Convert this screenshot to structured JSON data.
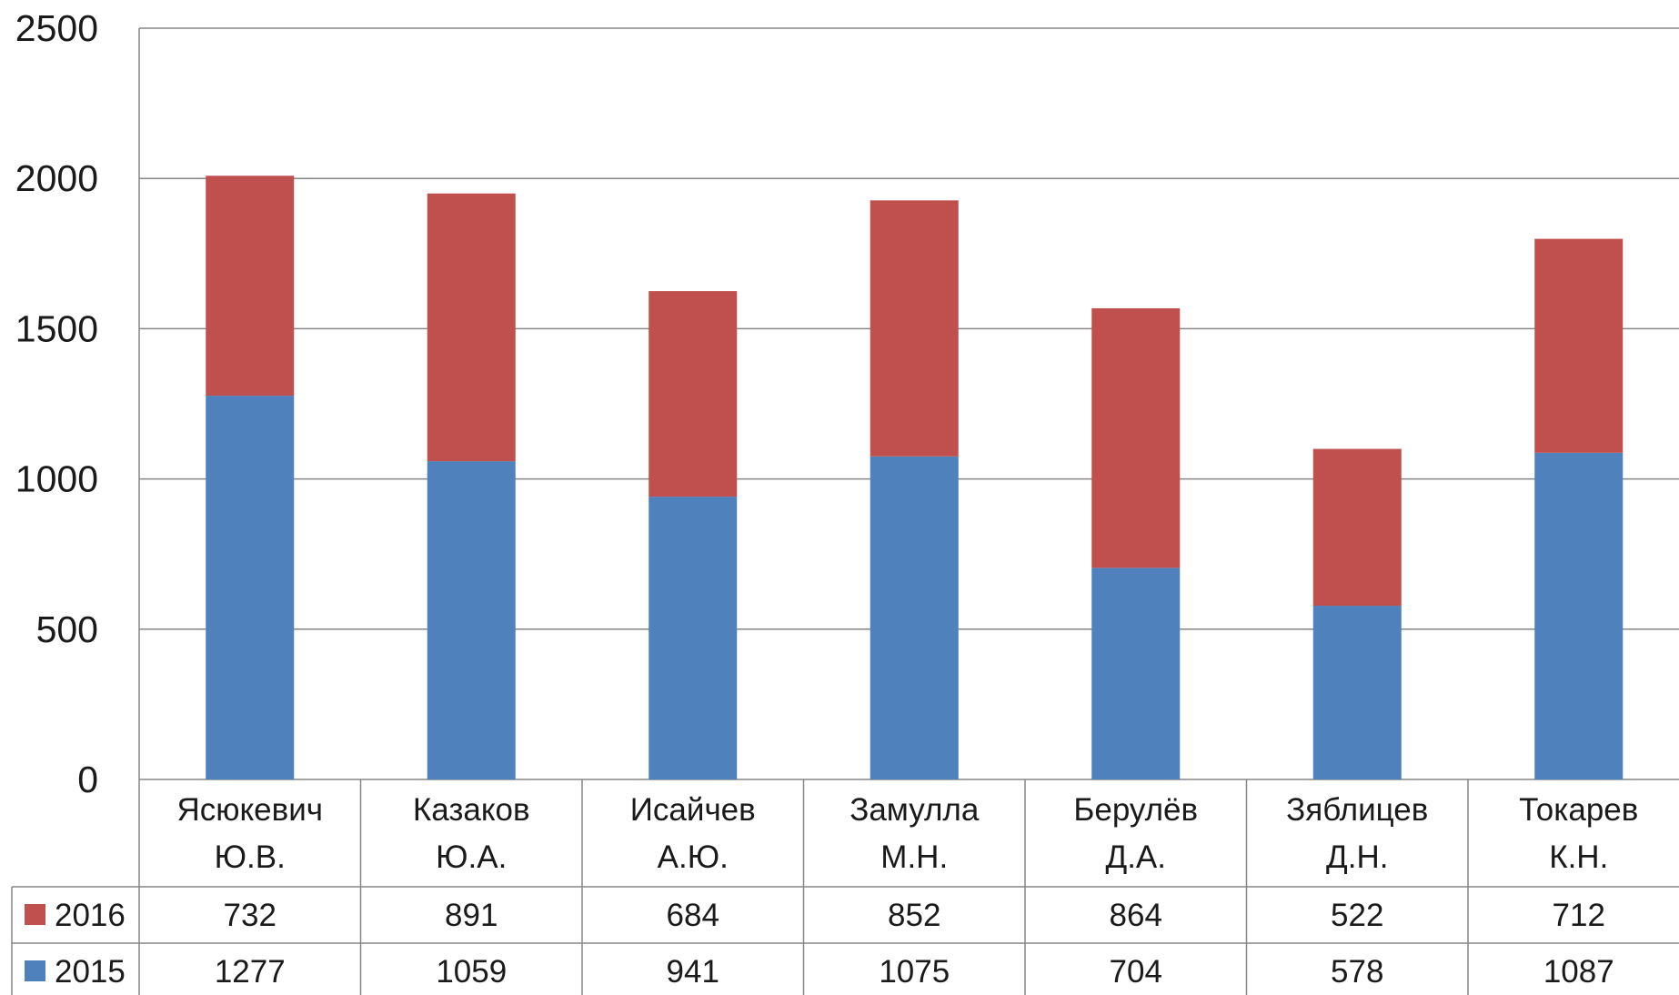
{
  "chart_data": {
    "type": "bar",
    "stacked": true,
    "categories": [
      [
        "Ясюкевич",
        "Ю.В."
      ],
      [
        "Казаков",
        "Ю.А."
      ],
      [
        "Исайчев",
        "А.Ю."
      ],
      [
        "Замулла",
        "М.Н."
      ],
      [
        "Берулёв",
        "Д.А."
      ],
      [
        "Зяблицев",
        "Д.Н."
      ],
      [
        "Токарев",
        "К.Н."
      ]
    ],
    "series": [
      {
        "name": "2015",
        "color": "#4F81BD",
        "values": [
          1277,
          1059,
          941,
          1075,
          704,
          578,
          1087
        ]
      },
      {
        "name": "2016",
        "color": "#C0504D",
        "values": [
          732,
          891,
          684,
          852,
          864,
          522,
          712
        ]
      }
    ],
    "table_row_order": [
      "2016",
      "2015"
    ],
    "yticks": [
      0,
      500,
      1000,
      1500,
      2000,
      2500
    ],
    "ylim": [
      0,
      2500
    ],
    "grid": true,
    "legend": "data-table"
  }
}
